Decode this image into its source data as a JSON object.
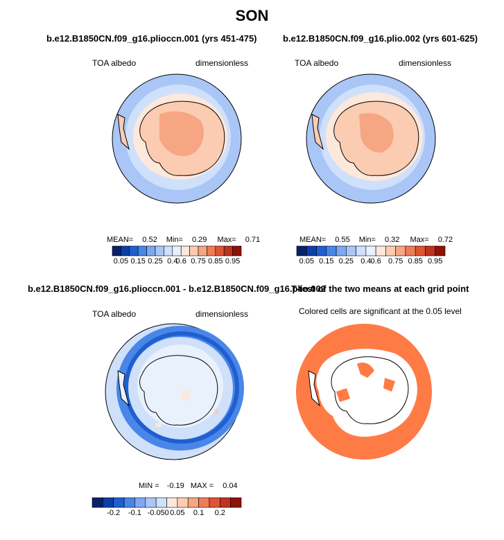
{
  "page": {
    "title": "SON"
  },
  "panels": [
    {
      "id": "tl",
      "header": "b.e12.B1850CN.f09_g16.plioccn.001 (yrs 451-475)",
      "left_label": "TOA albedo",
      "right_label": "dimensionless",
      "stats": {
        "mean_label": "MEAN=",
        "mean": "0.52",
        "min_label": "Min=",
        "min": "0.29",
        "max_label": "Max=",
        "max": "0.71"
      },
      "colorbar": {
        "ticks": [
          "0.05",
          "0.15",
          "0.25",
          "0.4",
          "0.6",
          "0.75",
          "0.85",
          "0.95"
        ],
        "colors": [
          "#08216b",
          "#0d3fa6",
          "#1f5fcf",
          "#4a86e8",
          "#7ea8f2",
          "#a9c6f7",
          "#cfe0fb",
          "#e9f1fd",
          "#fde8dc",
          "#fbccb2",
          "#f6a683",
          "#ee7d57",
          "#df5433",
          "#c0321d",
          "#8f1207"
        ]
      }
    },
    {
      "id": "tr",
      "header": "b.e12.B1850CN.f09_g16.plio.002 (yrs 601-625)",
      "left_label": "TOA albedo",
      "right_label": "dimensionless",
      "stats": {
        "mean_label": "MEAN=",
        "mean": "0.55",
        "min_label": "Min=",
        "min": "0.32",
        "max_label": "Max=",
        "max": "0.72"
      },
      "colorbar": {
        "ticks": [
          "0.05",
          "0.15",
          "0.25",
          "0.4",
          "0.6",
          "0.75",
          "0.85",
          "0.95"
        ],
        "colors": [
          "#08216b",
          "#0d3fa6",
          "#1f5fcf",
          "#4a86e8",
          "#7ea8f2",
          "#a9c6f7",
          "#cfe0fb",
          "#e9f1fd",
          "#fde8dc",
          "#fbccb2",
          "#f6a683",
          "#ee7d57",
          "#df5433",
          "#c0321d",
          "#8f1207"
        ]
      }
    },
    {
      "id": "bl",
      "header": "b.e12.B1850CN.f09_g16.plioccn.001 - b.e12.B1850CN.f09_g16.plio.002",
      "left_label": "TOA albedo",
      "right_label": "dimensionless",
      "stats": {
        "min_label": "MIN =",
        "min": "-0.19",
        "max_label": "MAX =",
        "max": "0.04"
      },
      "colorbar": {
        "ticks": [
          "-0.2",
          "-0.1",
          "-0.05",
          "0",
          "0.05",
          "0.1",
          "0.2"
        ],
        "colors": [
          "#08216b",
          "#0d3fa6",
          "#1f5fcf",
          "#4a86e8",
          "#7ea8f2",
          "#a9c6f7",
          "#cfe0fb",
          "#fde8dc",
          "#fbccb2",
          "#f6a683",
          "#ee7d57",
          "#df5433",
          "#c0321d",
          "#8f1207"
        ]
      }
    },
    {
      "id": "br",
      "header": "T-test of the two means at each grid point",
      "subheader": "Colored cells are significant at the 0.05 level"
    }
  ],
  "colors": {
    "albedo_map_outer": "#a9c6f7",
    "albedo_map_ring": "#cfe0fb",
    "albedo_map_land": "#fbccb2",
    "albedo_map_inner": "#f6a683",
    "diff_map_bg": "#cfe0fb",
    "diff_map_ring": "#4a86e8",
    "ttest_color": "#ff7b45"
  }
}
